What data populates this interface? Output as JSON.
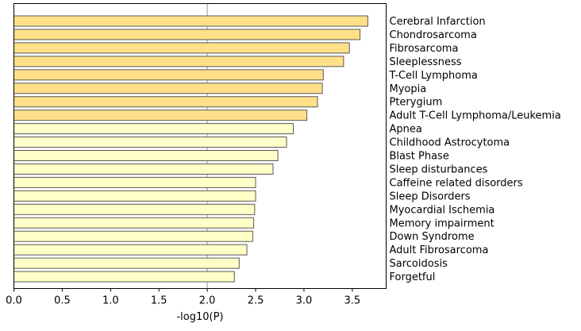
{
  "chart_data": {
    "type": "bar",
    "orientation": "horizontal",
    "xlabel": "-log10(P)",
    "xlim": [
      0,
      3.85
    ],
    "xticks": [
      "0.0",
      "0.5",
      "1.0",
      "1.5",
      "2.0",
      "2.5",
      "3.0",
      "3.5"
    ],
    "xtick_values": [
      0,
      0.5,
      1.0,
      1.5,
      2.0,
      2.5,
      3.0,
      3.5
    ],
    "reference_line_x": 2.0,
    "reference_line_color": "#a6a6a6",
    "bar_edge_color": "#595959",
    "bars": [
      {
        "label": "Cerebral Infarction",
        "value": 3.66,
        "color": "#ffe089"
      },
      {
        "label": "Chondrosarcoma",
        "value": 3.58,
        "color": "#ffe089"
      },
      {
        "label": "Fibrosarcoma",
        "value": 3.47,
        "color": "#ffe089"
      },
      {
        "label": "Sleeplessness",
        "value": 3.41,
        "color": "#ffe089"
      },
      {
        "label": "T-Cell Lymphoma",
        "value": 3.2,
        "color": "#ffe089"
      },
      {
        "label": "Myopia",
        "value": 3.19,
        "color": "#ffe089"
      },
      {
        "label": "Pterygium",
        "value": 3.14,
        "color": "#ffe089"
      },
      {
        "label": "Adult T-Cell Lymphoma/Leukemia",
        "value": 3.03,
        "color": "#ffe089"
      },
      {
        "label": "Apnea",
        "value": 2.89,
        "color": "#ffffc8"
      },
      {
        "label": "Childhood Astrocytoma",
        "value": 2.82,
        "color": "#ffffc8"
      },
      {
        "label": "Blast Phase",
        "value": 2.73,
        "color": "#ffffc8"
      },
      {
        "label": "Sleep disturbances",
        "value": 2.68,
        "color": "#ffffc8"
      },
      {
        "label": "Caffeine related disorders",
        "value": 2.5,
        "color": "#ffffc8"
      },
      {
        "label": "Sleep Disorders",
        "value": 2.5,
        "color": "#ffffc8"
      },
      {
        "label": "Myocardial Ischemia",
        "value": 2.49,
        "color": "#ffffc8"
      },
      {
        "label": "Memory impairment",
        "value": 2.48,
        "color": "#ffffc8"
      },
      {
        "label": "Down Syndrome",
        "value": 2.47,
        "color": "#ffffc8"
      },
      {
        "label": "Adult Fibrosarcoma",
        "value": 2.41,
        "color": "#ffffc8"
      },
      {
        "label": "Sarcoidosis",
        "value": 2.33,
        "color": "#ffffc8"
      },
      {
        "label": "Forgetful",
        "value": 2.28,
        "color": "#ffffc8"
      }
    ]
  }
}
